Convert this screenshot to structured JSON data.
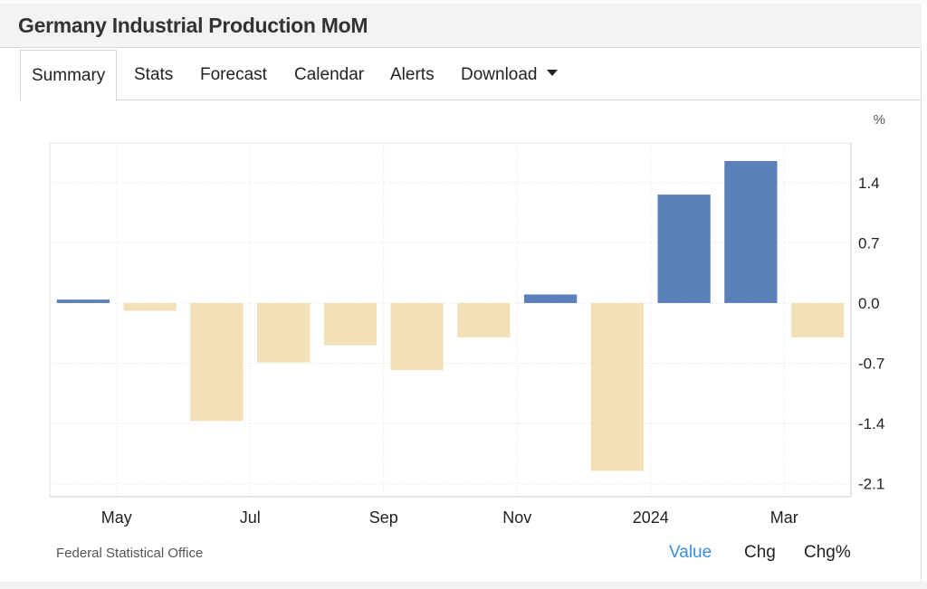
{
  "header": {
    "title": "Germany Industrial Production MoM"
  },
  "tabs": [
    {
      "label": "Summary",
      "active": true
    },
    {
      "label": "Stats"
    },
    {
      "label": "Forecast"
    },
    {
      "label": "Calendar"
    },
    {
      "label": "Alerts"
    },
    {
      "label": "Download",
      "dropdown": true
    }
  ],
  "chart_data": {
    "type": "bar",
    "unit_label": "%",
    "categories": [
      "Apr 2023",
      "May 2023",
      "Jun 2023",
      "Jul 2023",
      "Aug 2023",
      "Sep 2023",
      "Oct 2023",
      "Nov 2023",
      "Dec 2023",
      "Jan 2024",
      "Feb 2024",
      "Mar 2024"
    ],
    "values": [
      0.04,
      -0.09,
      -1.37,
      -0.69,
      -0.49,
      -0.78,
      -0.4,
      0.1,
      -1.95,
      1.26,
      1.65,
      -0.4
    ],
    "x_tick_labels": [
      "May",
      "Jul",
      "Sep",
      "Nov",
      "2024",
      "Mar"
    ],
    "x_tick_categories": [
      1,
      3,
      5,
      7,
      9,
      11
    ],
    "y_ticks": [
      "1.4",
      "0.7",
      "0.0",
      "-0.7",
      "-1.4",
      "-2.1"
    ],
    "y_tick_values": [
      1.4,
      0.7,
      0.0,
      -0.7,
      -1.4,
      -2.1
    ],
    "ylim": [
      -2.25,
      1.86
    ],
    "y_axis_position": "right",
    "grid": true,
    "colors": {
      "positive": "#5b80b9",
      "negative": "#f2e1b8",
      "grid": "#e0e0e0",
      "axis": "#cccccc"
    }
  },
  "footer": {
    "source": "Federal Statistical Office",
    "links": [
      {
        "label": "Value",
        "active": true
      },
      {
        "label": "Chg"
      },
      {
        "label": "Chg%"
      }
    ],
    "active_color": "#3b8ee0"
  }
}
